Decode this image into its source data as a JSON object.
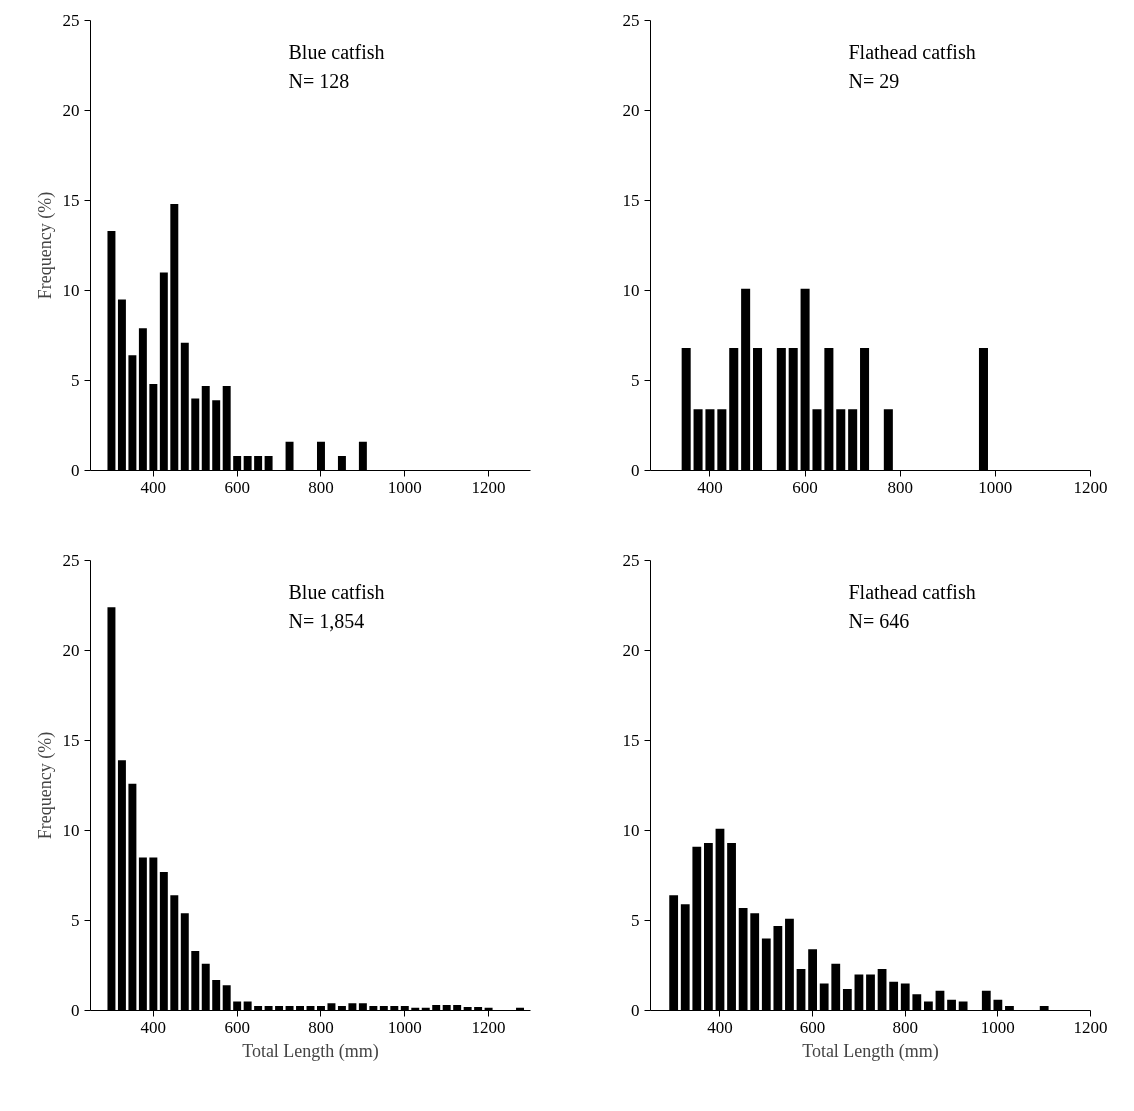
{
  "chart_data": [
    {
      "type": "histogram",
      "ylabel": "Frequency (%)",
      "annotations": [
        "Blue catfish",
        "N= 128"
      ],
      "bins": [
        287.5,
        312.5,
        337.5,
        362.5,
        387.5,
        412.5,
        437.5,
        462.5,
        487.5,
        512.5,
        537.5,
        562.5,
        587.5,
        612.5,
        637.5,
        662.5,
        687.5,
        712.5,
        737.5,
        762.5,
        787.5,
        812.5,
        837.5,
        862.5,
        887.5,
        912.5
      ],
      "values": [
        13.3,
        9.5,
        6.4,
        7.9,
        4.8,
        11,
        14.8,
        7.1,
        4,
        4.7,
        3.9,
        4.7,
        0.8,
        0.8,
        0.8,
        0.8,
        0,
        1.6,
        0,
        0,
        1.6,
        0,
        0.8,
        0,
        1.6
      ],
      "color": "#000000",
      "xlim": [
        250,
        1300
      ],
      "xticks": [
        400,
        600,
        800,
        1000,
        1200
      ],
      "ylim": [
        0,
        25
      ],
      "yticks": [
        0,
        5,
        10,
        15,
        20,
        25
      ],
      "grid": false
    },
    {
      "type": "histogram",
      "annotations": [
        "Flathead catfish",
        "N= 29"
      ],
      "bins": [
        337.5,
        362.5,
        387.5,
        412.5,
        437.5,
        462.5,
        487.5,
        512.5,
        537.5,
        562.5,
        587.5,
        612.5,
        637.5,
        662.5,
        687.5,
        712.5,
        737.5,
        762.5,
        787.5,
        812.5,
        837.5,
        862.5,
        887.5,
        912.5,
        937.5,
        962.5,
        987.5
      ],
      "values": [
        6.8,
        3.4,
        3.4,
        3.4,
        6.8,
        10.1,
        6.8,
        0,
        6.8,
        6.8,
        10.1,
        3.4,
        6.8,
        3.4,
        3.4,
        6.8,
        0,
        3.4,
        0,
        0,
        0,
        0,
        0,
        0,
        0,
        6.8
      ],
      "color": "#000000",
      "xlim": [
        275,
        1200
      ],
      "xticks": [
        400,
        600,
        800,
        1000,
        1200
      ],
      "ylim": [
        0,
        25
      ],
      "yticks": [
        0,
        5,
        10,
        15,
        20,
        25
      ],
      "grid": false
    },
    {
      "type": "histogram",
      "xlabel": "Total Length (mm)",
      "ylabel": "Frequency (%)",
      "annotations": [
        "Blue catfish",
        "N= 1,854"
      ],
      "bins": [
        287.5,
        312.5,
        337.5,
        362.5,
        387.5,
        412.5,
        437.5,
        462.5,
        487.5,
        512.5,
        537.5,
        562.5,
        587.5,
        612.5,
        637.5,
        662.5,
        687.5,
        712.5,
        737.5,
        762.5,
        787.5,
        812.5,
        837.5,
        862.5,
        887.5,
        912.5,
        937.5,
        962.5,
        987.5,
        1012.5,
        1037.5,
        1062.5,
        1087.5,
        1112.5,
        1137.5,
        1162.5,
        1187.5,
        1212.5,
        1237.5,
        1262.5,
        1287.5
      ],
      "values": [
        22.4,
        13.9,
        12.6,
        8.5,
        8.5,
        7.7,
        6.4,
        5.4,
        3.3,
        2.6,
        1.7,
        1.4,
        0.5,
        0.5,
        0.25,
        0.25,
        0.25,
        0.25,
        0.25,
        0.25,
        0.25,
        0.4,
        0.25,
        0.4,
        0.4,
        0.25,
        0.25,
        0.25,
        0.25,
        0.15,
        0.15,
        0.3,
        0.3,
        0.3,
        0.2,
        0.2,
        0.15,
        0,
        0,
        0.15
      ],
      "color": "#000000",
      "xlim": [
        250,
        1300
      ],
      "xticks": [
        400,
        600,
        800,
        1000,
        1200
      ],
      "ylim": [
        0,
        25
      ],
      "yticks": [
        0,
        5,
        10,
        15,
        20,
        25
      ],
      "grid": false
    },
    {
      "type": "histogram",
      "xlabel": "Total Length (mm)",
      "annotations": [
        "Flathead catfish",
        "N= 646"
      ],
      "bins": [
        287.5,
        312.5,
        337.5,
        362.5,
        387.5,
        412.5,
        437.5,
        462.5,
        487.5,
        512.5,
        537.5,
        562.5,
        587.5,
        612.5,
        637.5,
        662.5,
        687.5,
        712.5,
        737.5,
        762.5,
        787.5,
        812.5,
        837.5,
        862.5,
        887.5,
        912.5,
        937.5,
        962.5,
        987.5,
        1012.5,
        1037.5,
        1062.5,
        1087.5,
        1112.5
      ],
      "values": [
        6.4,
        5.9,
        9.1,
        9.3,
        10.1,
        9.3,
        5.7,
        5.4,
        4,
        4.7,
        5.1,
        2.3,
        3.4,
        1.5,
        2.6,
        1.2,
        2,
        2,
        2.3,
        1.6,
        1.5,
        0.9,
        0.5,
        1.1,
        0.6,
        0.5,
        0,
        1.1,
        0.6,
        0.25,
        0,
        0,
        0.25
      ],
      "color": "#000000",
      "xlim": [
        250,
        1200
      ],
      "xticks": [
        400,
        600,
        800,
        1000,
        1200
      ],
      "ylim": [
        0,
        25
      ],
      "yticks": [
        0,
        5,
        10,
        15,
        20,
        25
      ],
      "grid": false
    }
  ]
}
